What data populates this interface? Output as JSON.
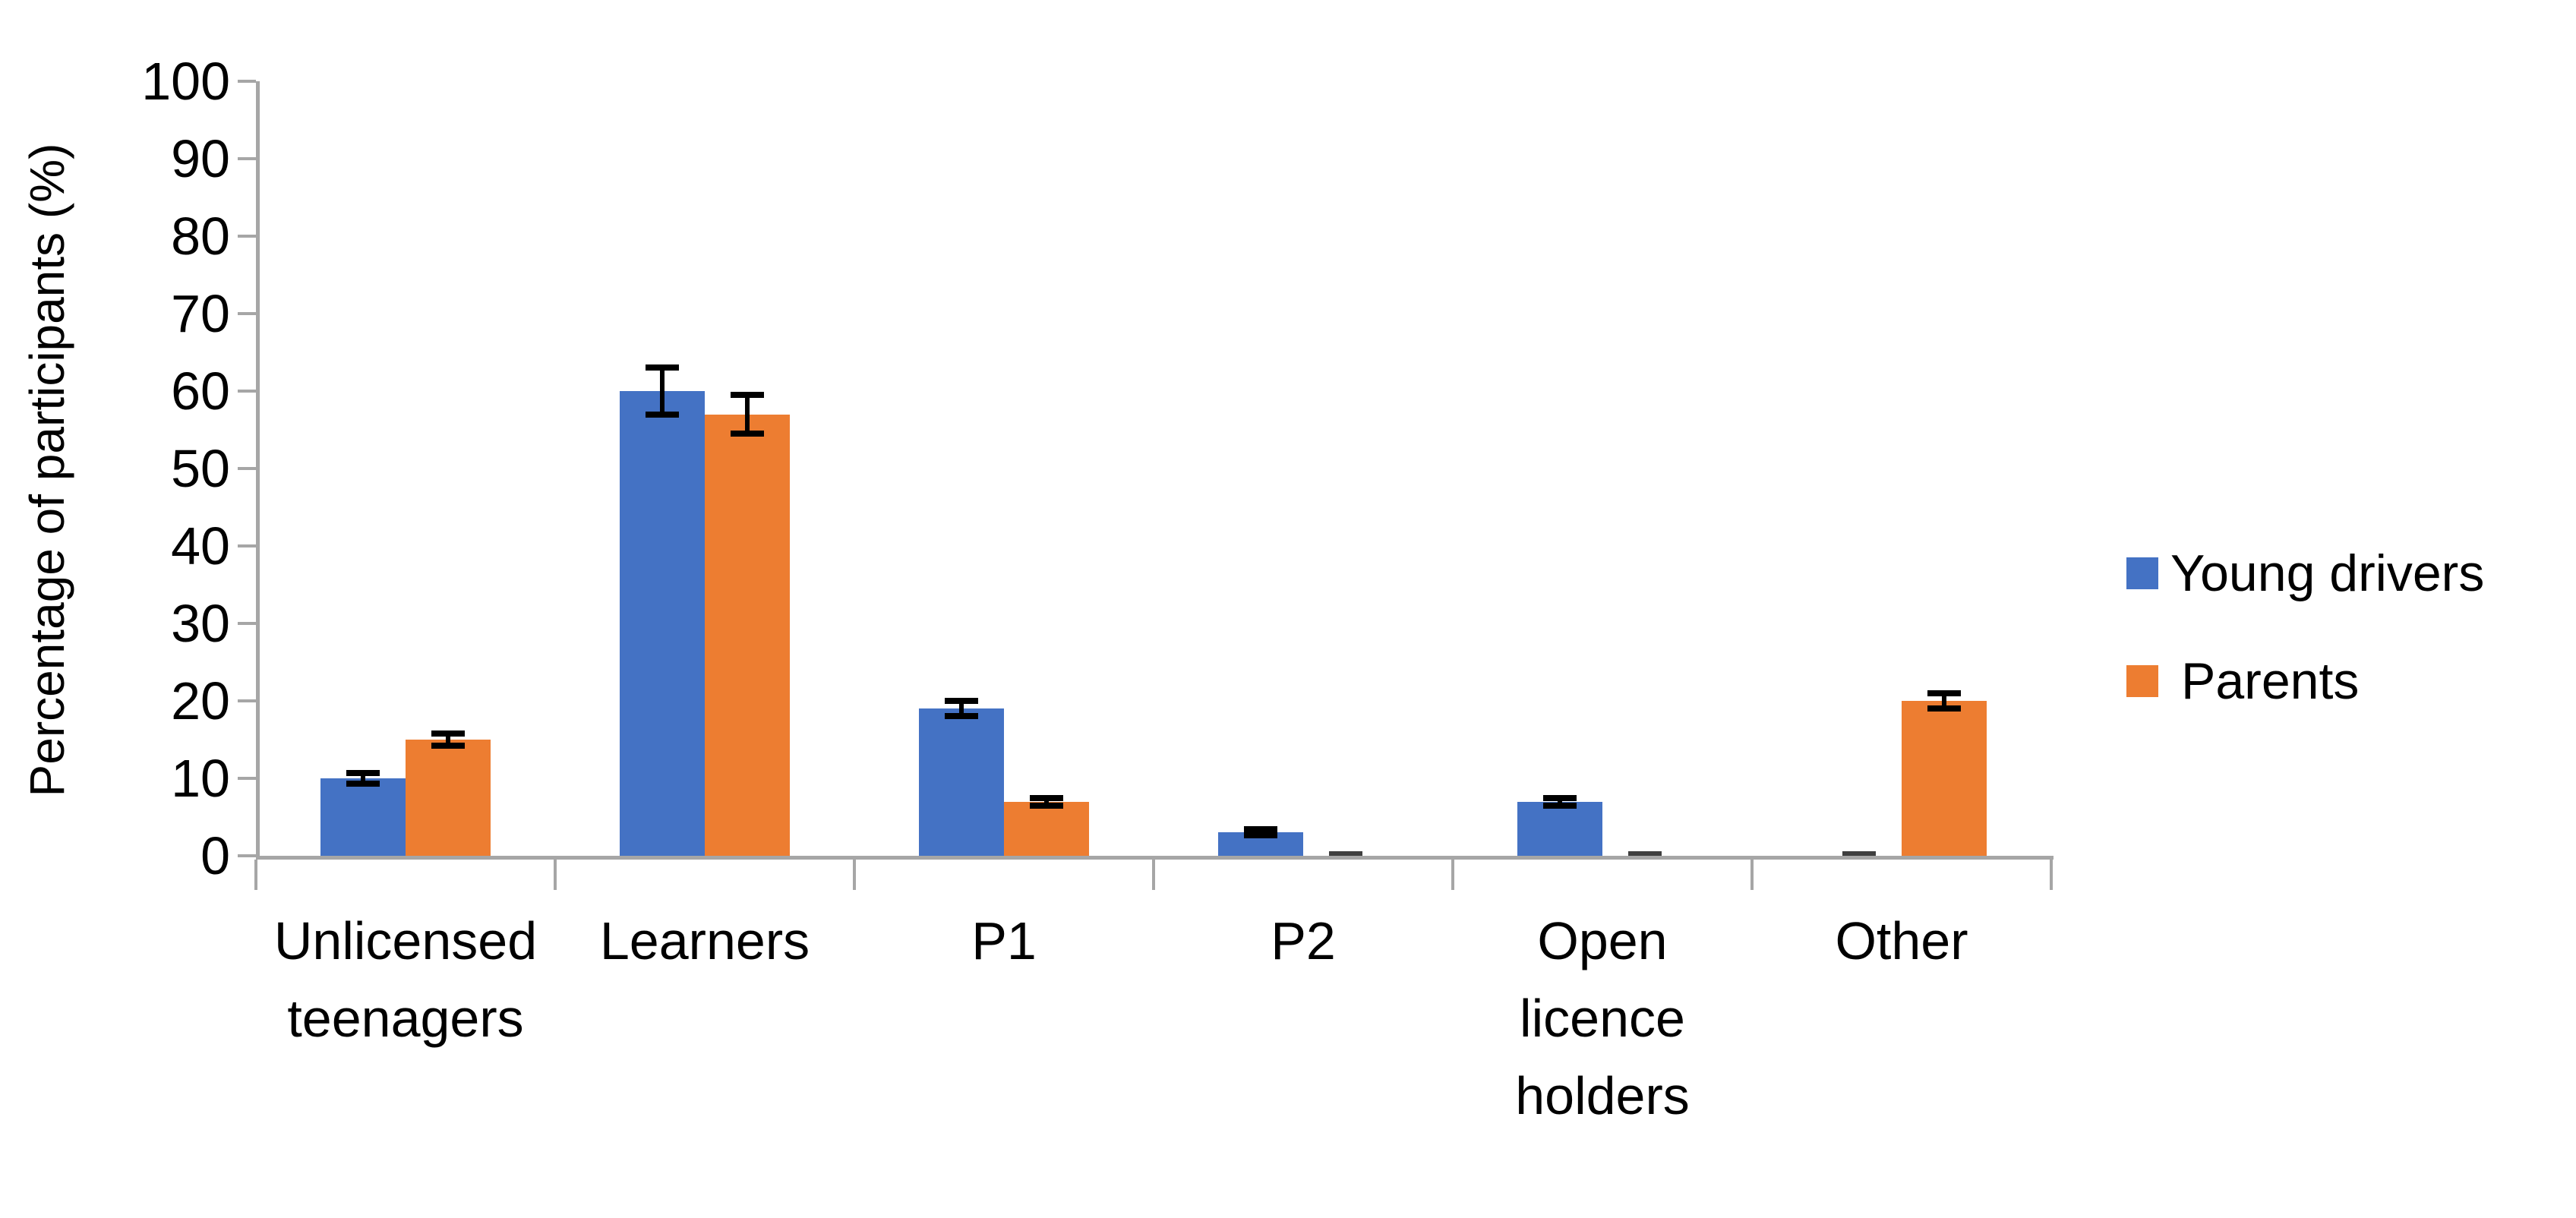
{
  "chart_data": {
    "type": "bar",
    "title": "",
    "ylabel": "Percentage of participants (%)",
    "xlabel": "",
    "ylim": [
      0,
      100
    ],
    "ytick_step": 10,
    "yticks": [
      0,
      10,
      20,
      30,
      40,
      50,
      60,
      70,
      80,
      90,
      100
    ],
    "grid": false,
    "legend_position": "right",
    "categories": [
      "Unlicensed teenagers",
      "Learners",
      "P1",
      "P2",
      "Open licence holders",
      "Other"
    ],
    "category_lines": [
      [
        "Unlicensed",
        "teenagers"
      ],
      [
        "Learners"
      ],
      [
        "P1"
      ],
      [
        "P2"
      ],
      [
        "Open",
        "licence",
        "holders"
      ],
      [
        "Other"
      ]
    ],
    "series": [
      {
        "name": "Young drivers",
        "color": "#4472C4",
        "values": [
          10,
          60,
          19,
          3,
          7,
          0
        ],
        "errors": [
          0.7,
          3,
          1,
          0.4,
          0.5,
          0
        ]
      },
      {
        "name": "Parents",
        "color": "#ED7D31",
        "values": [
          15,
          57,
          7,
          0,
          0,
          20
        ],
        "errors": [
          0.8,
          2.5,
          0.5,
          0,
          0,
          1
        ]
      }
    ],
    "error_bar_color": "#000000",
    "zero_bar_mark_color": "#3f3f3f",
    "axis_color": "#A6A6A6",
    "text_color": "#000000"
  }
}
